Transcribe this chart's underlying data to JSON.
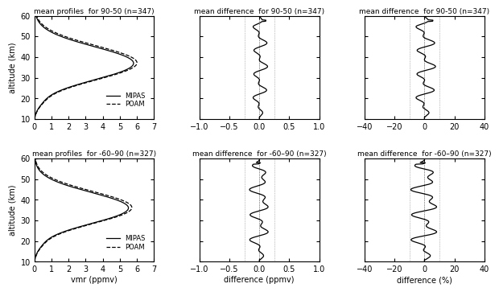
{
  "titles_row1": [
    "mean profiles  for 90-50 (n=347)",
    "mean difference  for 90-50 (n=347)",
    "mean difference  for 90-50 (n=347)"
  ],
  "titles_row2": [
    "mean profiles  for -60–90 (n=327)",
    "mean difference  for -60–90 (n=327)",
    "mean difference  for -60–90 (n=327)"
  ],
  "xlabels": [
    "vmr (ppmv)",
    "difference (ppmv)",
    "difference (%)"
  ],
  "ylabel": "altitude (km)",
  "altitude_range": [
    10,
    60
  ],
  "vmr_xlim": [
    0,
    7
  ],
  "diff_ppmv_xlim": [
    -1.0,
    1.0
  ],
  "diff_pct_xlim": [
    -40,
    40
  ],
  "legend_labels": [
    "MIPAS",
    "POAM"
  ],
  "dashed_lines_ppmv": [
    -0.25,
    0.25
  ],
  "dashed_lines_pct": [
    -10,
    10
  ]
}
